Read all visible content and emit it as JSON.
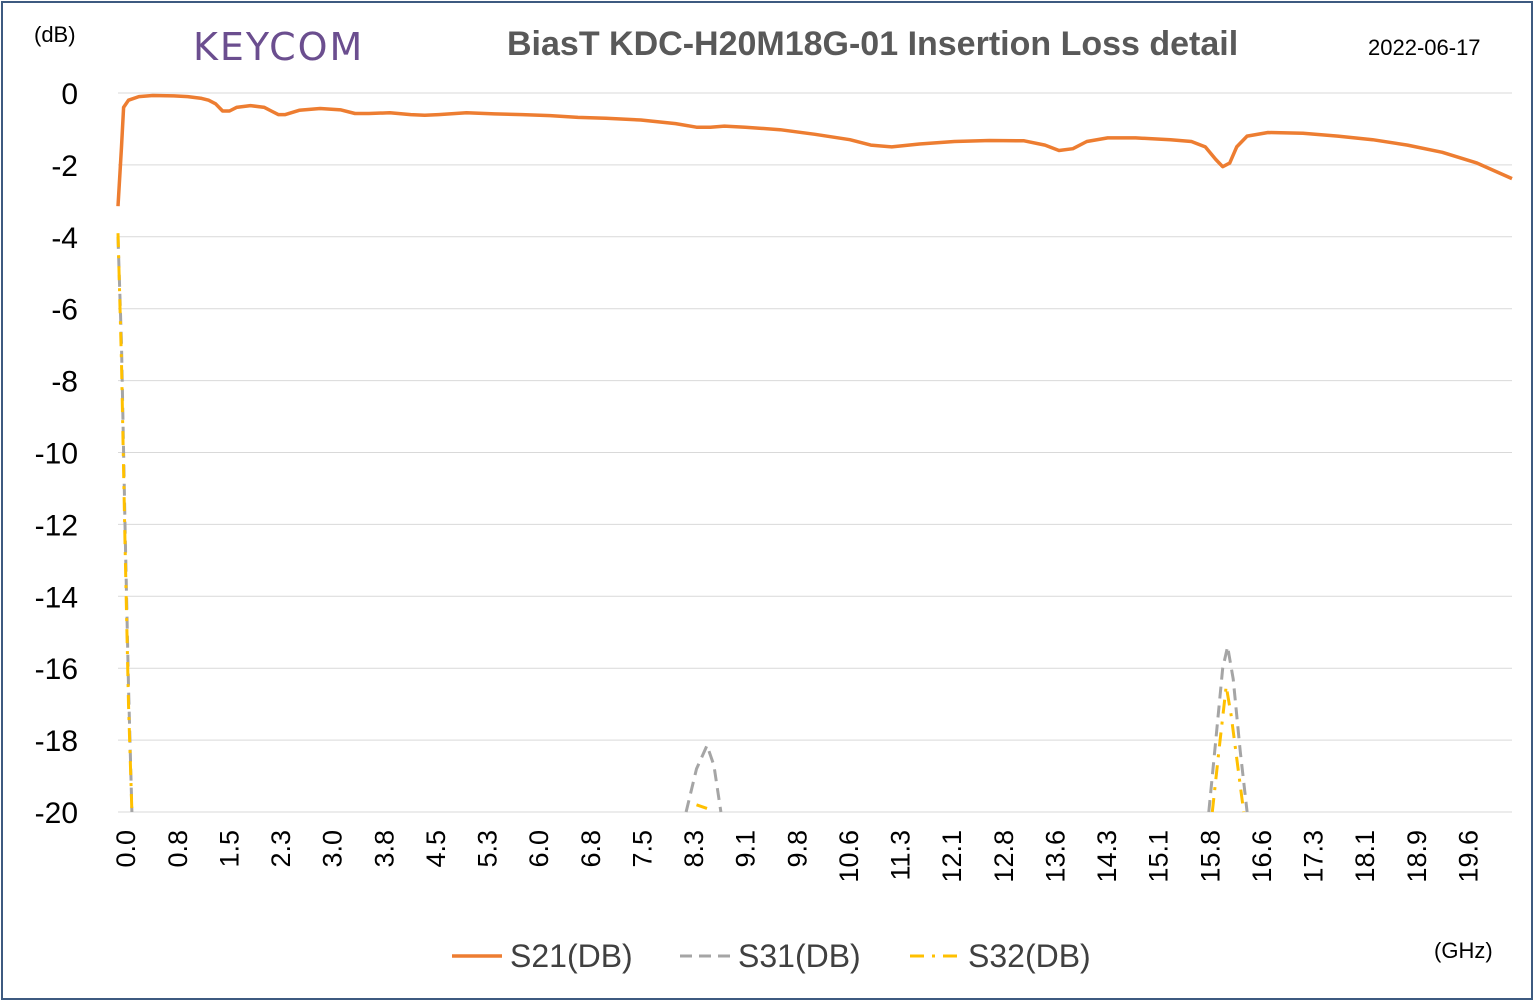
{
  "logo_text": "KEYCOM",
  "chart_data": {
    "type": "line",
    "title": "BiasT  KDC-H20M18G-01 Insertion Loss detail",
    "date": "2022-06-17",
    "ylabel": "(dB)",
    "xlabel": "(GHz)",
    "ylim": [
      -20,
      0
    ],
    "yticks": [
      0,
      -2,
      -4,
      -6,
      -8,
      -10,
      -12,
      -14,
      -16,
      -18,
      -20
    ],
    "xlim": [
      0.0,
      20.0
    ],
    "xticks": [
      "0.0",
      "0.8",
      "1.5",
      "2.3",
      "3.0",
      "3.8",
      "4.5",
      "5.3",
      "6.0",
      "6.8",
      "7.5",
      "8.3",
      "9.1",
      "9.8",
      "10.6",
      "11.3",
      "12.1",
      "12.8",
      "13.6",
      "14.3",
      "15.1",
      "15.8",
      "16.6",
      "17.3",
      "18.1",
      "18.9",
      "19.6"
    ],
    "grid": true,
    "legend_position": "bottom",
    "series": [
      {
        "name": "S21(DB)",
        "color": "#ed7d31",
        "style": "solid",
        "points": [
          [
            0.0,
            -3.15
          ],
          [
            0.05,
            -1.5
          ],
          [
            0.08,
            -0.4
          ],
          [
            0.15,
            -0.2
          ],
          [
            0.3,
            -0.1
          ],
          [
            0.5,
            -0.07
          ],
          [
            0.8,
            -0.08
          ],
          [
            1.0,
            -0.1
          ],
          [
            1.2,
            -0.15
          ],
          [
            1.3,
            -0.2
          ],
          [
            1.4,
            -0.3
          ],
          [
            1.5,
            -0.5
          ],
          [
            1.6,
            -0.5
          ],
          [
            1.7,
            -0.4
          ],
          [
            1.9,
            -0.35
          ],
          [
            2.1,
            -0.4
          ],
          [
            2.2,
            -0.5
          ],
          [
            2.3,
            -0.6
          ],
          [
            2.4,
            -0.6
          ],
          [
            2.6,
            -0.48
          ],
          [
            2.9,
            -0.43
          ],
          [
            3.2,
            -0.47
          ],
          [
            3.4,
            -0.57
          ],
          [
            3.6,
            -0.57
          ],
          [
            3.9,
            -0.55
          ],
          [
            4.2,
            -0.6
          ],
          [
            4.4,
            -0.62
          ],
          [
            4.6,
            -0.6
          ],
          [
            5.0,
            -0.55
          ],
          [
            5.4,
            -0.58
          ],
          [
            5.8,
            -0.6
          ],
          [
            6.2,
            -0.63
          ],
          [
            6.6,
            -0.68
          ],
          [
            7.0,
            -0.7
          ],
          [
            7.5,
            -0.75
          ],
          [
            8.0,
            -0.85
          ],
          [
            8.3,
            -0.95
          ],
          [
            8.5,
            -0.95
          ],
          [
            8.7,
            -0.92
          ],
          [
            9.0,
            -0.95
          ],
          [
            9.5,
            -1.02
          ],
          [
            10.0,
            -1.15
          ],
          [
            10.5,
            -1.3
          ],
          [
            10.8,
            -1.45
          ],
          [
            11.1,
            -1.5
          ],
          [
            11.5,
            -1.42
          ],
          [
            12.0,
            -1.35
          ],
          [
            12.5,
            -1.32
          ],
          [
            13.0,
            -1.33
          ],
          [
            13.3,
            -1.45
          ],
          [
            13.5,
            -1.6
          ],
          [
            13.7,
            -1.55
          ],
          [
            13.9,
            -1.35
          ],
          [
            14.2,
            -1.25
          ],
          [
            14.6,
            -1.25
          ],
          [
            15.1,
            -1.3
          ],
          [
            15.4,
            -1.35
          ],
          [
            15.6,
            -1.5
          ],
          [
            15.75,
            -1.85
          ],
          [
            15.85,
            -2.05
          ],
          [
            15.95,
            -1.95
          ],
          [
            16.05,
            -1.5
          ],
          [
            16.2,
            -1.2
          ],
          [
            16.5,
            -1.1
          ],
          [
            17.0,
            -1.12
          ],
          [
            17.5,
            -1.2
          ],
          [
            18.0,
            -1.3
          ],
          [
            18.5,
            -1.45
          ],
          [
            19.0,
            -1.65
          ],
          [
            19.5,
            -1.95
          ],
          [
            20.0,
            -2.38
          ]
        ]
      },
      {
        "name": "S31(DB)",
        "color": "#a5a5a5",
        "style": "dashed",
        "segments": [
          [
            [
              0.0,
              -4.0
            ],
            [
              0.05,
              -7.0
            ],
            [
              0.1,
              -12.0
            ],
            [
              0.15,
              -16.5
            ],
            [
              0.2,
              -20.0
            ]
          ],
          [
            [
              8.15,
              -20.0
            ],
            [
              8.3,
              -18.8
            ],
            [
              8.45,
              -18.15
            ],
            [
              8.55,
              -18.7
            ],
            [
              8.65,
              -20.0
            ]
          ],
          [
            [
              15.65,
              -20.0
            ],
            [
              15.75,
              -18.0
            ],
            [
              15.85,
              -16.0
            ],
            [
              15.92,
              -15.4
            ],
            [
              16.0,
              -16.3
            ],
            [
              16.1,
              -18.3
            ],
            [
              16.2,
              -20.0
            ]
          ]
        ]
      },
      {
        "name": "S32(DB)",
        "color": "#ffc000",
        "style": "dashdot",
        "segments": [
          [
            [
              0.0,
              -3.9
            ],
            [
              0.05,
              -7.5
            ],
            [
              0.1,
              -12.5
            ],
            [
              0.15,
              -17.0
            ],
            [
              0.2,
              -20.0
            ]
          ],
          [
            [
              8.3,
              -19.8
            ],
            [
              8.45,
              -19.9
            ]
          ],
          [
            [
              15.7,
              -20.0
            ],
            [
              15.8,
              -18.2
            ],
            [
              15.9,
              -16.5
            ],
            [
              15.97,
              -17.3
            ],
            [
              16.05,
              -18.5
            ],
            [
              16.15,
              -20.0
            ]
          ]
        ]
      }
    ]
  }
}
